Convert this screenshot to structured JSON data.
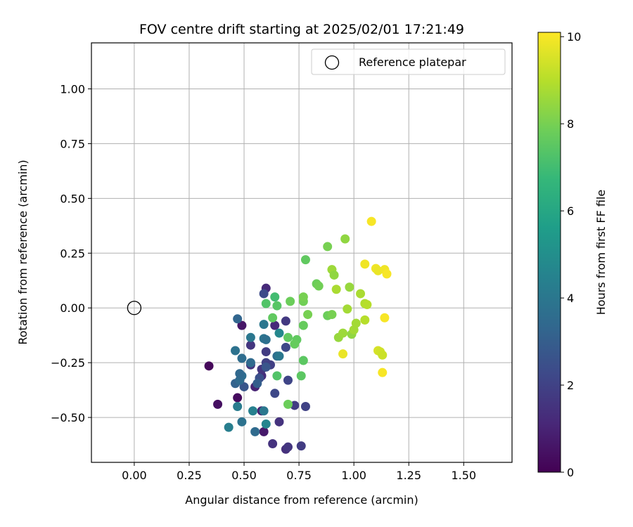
{
  "chart_data": {
    "type": "scatter",
    "title": "FOV centre drift starting at 2025/02/01 17:21:49",
    "xlabel": "Angular distance from reference (arcmin)",
    "ylabel": "Rotation from reference (arcmin)",
    "xlim": [
      -0.195,
      1.72
    ],
    "ylim": [
      -0.705,
      1.21
    ],
    "xticks": [
      0.0,
      0.25,
      0.5,
      0.75,
      1.0,
      1.25,
      1.5
    ],
    "xtick_labels": [
      "0.00",
      "0.25",
      "0.50",
      "0.75",
      "1.00",
      "1.25",
      "1.50"
    ],
    "yticks": [
      -0.5,
      -0.25,
      0.0,
      0.25,
      0.5,
      0.75,
      1.0
    ],
    "ytick_labels": [
      "−0.50",
      "−0.25",
      "0.00",
      "0.25",
      "0.50",
      "0.75",
      "1.00"
    ],
    "grid": true,
    "legend": {
      "position": "top-right",
      "entries": [
        {
          "label": "Reference platepar",
          "marker": "open-circle"
        }
      ]
    },
    "reference_point": {
      "x": 0.0,
      "y": 0.0
    },
    "colorbar": {
      "label": "Hours from first FF file",
      "colormap": "viridis",
      "range": [
        0,
        10.1
      ],
      "ticks": [
        0,
        2,
        4,
        6,
        8,
        10
      ],
      "tick_labels": [
        "0",
        "2",
        "4",
        "6",
        "8",
        "10"
      ],
      "colors": [
        "#440154",
        "#482878",
        "#3e4989",
        "#31688e",
        "#26828e",
        "#1f9e89",
        "#35b779",
        "#6ece58",
        "#b5de2b",
        "#fde725"
      ]
    },
    "points": [
      {
        "x": 0.34,
        "y": -0.265,
        "c": 0.2
      },
      {
        "x": 0.38,
        "y": -0.44,
        "c": 0.4
      },
      {
        "x": 0.47,
        "y": -0.41,
        "c": 0.3
      },
      {
        "x": 0.48,
        "y": -0.33,
        "c": 0.5
      },
      {
        "x": 0.49,
        "y": -0.08,
        "c": 0.6
      },
      {
        "x": 0.59,
        "y": -0.565,
        "c": 0.7
      },
      {
        "x": 0.58,
        "y": -0.47,
        "c": 1.0
      },
      {
        "x": 0.55,
        "y": -0.36,
        "c": 1.0
      },
      {
        "x": 0.6,
        "y": 0.09,
        "c": 1.2
      },
      {
        "x": 0.63,
        "y": -0.62,
        "c": 1.5
      },
      {
        "x": 0.69,
        "y": -0.645,
        "c": 1.4
      },
      {
        "x": 0.7,
        "y": -0.635,
        "c": 1.6
      },
      {
        "x": 0.76,
        "y": -0.63,
        "c": 1.8
      },
      {
        "x": 0.66,
        "y": -0.52,
        "c": 1.5
      },
      {
        "x": 0.73,
        "y": -0.445,
        "c": 1.8
      },
      {
        "x": 0.78,
        "y": -0.45,
        "c": 2.0
      },
      {
        "x": 0.64,
        "y": -0.39,
        "c": 2.2
      },
      {
        "x": 0.7,
        "y": -0.33,
        "c": 2.1
      },
      {
        "x": 0.58,
        "y": -0.31,
        "c": 1.3
      },
      {
        "x": 0.58,
        "y": -0.28,
        "c": 1.6
      },
      {
        "x": 0.53,
        "y": -0.26,
        "c": 1.6
      },
      {
        "x": 0.6,
        "y": -0.25,
        "c": 2.0
      },
      {
        "x": 0.62,
        "y": -0.26,
        "c": 1.9
      },
      {
        "x": 0.6,
        "y": -0.2,
        "c": 1.8
      },
      {
        "x": 0.53,
        "y": -0.17,
        "c": 1.6
      },
      {
        "x": 0.64,
        "y": -0.08,
        "c": 1.2
      },
      {
        "x": 0.69,
        "y": -0.06,
        "c": 1.7
      },
      {
        "x": 0.69,
        "y": -0.18,
        "c": 2.2
      },
      {
        "x": 0.59,
        "y": 0.065,
        "c": 2.3
      },
      {
        "x": 0.6,
        "y": -0.27,
        "c": 2.7
      },
      {
        "x": 0.57,
        "y": -0.32,
        "c": 2.5
      },
      {
        "x": 0.5,
        "y": -0.36,
        "c": 2.7
      },
      {
        "x": 0.56,
        "y": -0.345,
        "c": 3.0
      },
      {
        "x": 0.46,
        "y": -0.345,
        "c": 3.2
      },
      {
        "x": 0.49,
        "y": -0.31,
        "c": 3.6
      },
      {
        "x": 0.48,
        "y": -0.33,
        "c": 3.5
      },
      {
        "x": 0.48,
        "y": -0.3,
        "c": 3.4
      },
      {
        "x": 0.49,
        "y": -0.23,
        "c": 3.6
      },
      {
        "x": 0.46,
        "y": -0.195,
        "c": 3.8
      },
      {
        "x": 0.47,
        "y": -0.05,
        "c": 3.3
      },
      {
        "x": 0.53,
        "y": -0.135,
        "c": 4.0
      },
      {
        "x": 0.59,
        "y": -0.14,
        "c": 3.9
      },
      {
        "x": 0.59,
        "y": -0.075,
        "c": 4.0
      },
      {
        "x": 0.6,
        "y": -0.145,
        "c": 3.7
      },
      {
        "x": 0.65,
        "y": -0.22,
        "c": 3.6
      },
      {
        "x": 0.66,
        "y": -0.22,
        "c": 4.0
      },
      {
        "x": 0.53,
        "y": -0.25,
        "c": 3.5
      },
      {
        "x": 0.55,
        "y": -0.565,
        "c": 3.5
      },
      {
        "x": 0.49,
        "y": -0.52,
        "c": 3.8
      },
      {
        "x": 0.43,
        "y": -0.545,
        "c": 4.3
      },
      {
        "x": 0.47,
        "y": -0.45,
        "c": 4.2
      },
      {
        "x": 0.54,
        "y": -0.47,
        "c": 4.4
      },
      {
        "x": 0.59,
        "y": -0.47,
        "c": 4.0
      },
      {
        "x": 0.6,
        "y": -0.53,
        "c": 4.6
      },
      {
        "x": 0.66,
        "y": -0.115,
        "c": 4.7
      },
      {
        "x": 0.64,
        "y": 0.05,
        "c": 7.0
      },
      {
        "x": 0.6,
        "y": 0.02,
        "c": 7.3
      },
      {
        "x": 0.65,
        "y": 0.01,
        "c": 7.4
      },
      {
        "x": 0.63,
        "y": -0.045,
        "c": 7.6
      },
      {
        "x": 0.65,
        "y": -0.31,
        "c": 7.3
      },
      {
        "x": 0.71,
        "y": 0.03,
        "c": 7.8
      },
      {
        "x": 0.7,
        "y": -0.135,
        "c": 7.6
      },
      {
        "x": 0.74,
        "y": -0.145,
        "c": 7.6
      },
      {
        "x": 0.73,
        "y": -0.165,
        "c": 7.7
      },
      {
        "x": 0.77,
        "y": -0.24,
        "c": 7.5
      },
      {
        "x": 0.76,
        "y": -0.31,
        "c": 7.5
      },
      {
        "x": 0.77,
        "y": -0.08,
        "c": 7.7
      },
      {
        "x": 0.7,
        "y": -0.44,
        "c": 7.8
      },
      {
        "x": 0.77,
        "y": 0.03,
        "c": 7.9
      },
      {
        "x": 0.77,
        "y": 0.05,
        "c": 8.0
      },
      {
        "x": 0.79,
        "y": -0.03,
        "c": 8.0
      },
      {
        "x": 0.78,
        "y": 0.22,
        "c": 7.6
      },
      {
        "x": 0.83,
        "y": 0.11,
        "c": 7.8
      },
      {
        "x": 0.84,
        "y": 0.1,
        "c": 7.9
      },
      {
        "x": 0.88,
        "y": -0.035,
        "c": 7.8
      },
      {
        "x": 0.9,
        "y": -0.03,
        "c": 8.0
      },
      {
        "x": 0.88,
        "y": 0.28,
        "c": 8.0
      },
      {
        "x": 0.9,
        "y": 0.175,
        "c": 8.6
      },
      {
        "x": 0.91,
        "y": 0.15,
        "c": 8.4
      },
      {
        "x": 0.92,
        "y": 0.085,
        "c": 8.8
      },
      {
        "x": 0.93,
        "y": -0.135,
        "c": 8.5
      },
      {
        "x": 0.95,
        "y": -0.115,
        "c": 8.6
      },
      {
        "x": 0.96,
        "y": 0.315,
        "c": 8.4
      },
      {
        "x": 0.97,
        "y": -0.005,
        "c": 8.7
      },
      {
        "x": 0.98,
        "y": 0.095,
        "c": 8.5
      },
      {
        "x": 0.99,
        "y": -0.12,
        "c": 8.4
      },
      {
        "x": 1.0,
        "y": -0.1,
        "c": 8.7
      },
      {
        "x": 1.01,
        "y": -0.07,
        "c": 8.7
      },
      {
        "x": 1.03,
        "y": 0.065,
        "c": 8.8
      },
      {
        "x": 1.05,
        "y": 0.02,
        "c": 8.9
      },
      {
        "x": 1.06,
        "y": 0.015,
        "c": 9.0
      },
      {
        "x": 1.05,
        "y": -0.055,
        "c": 9.0
      },
      {
        "x": 0.95,
        "y": -0.21,
        "c": 9.8
      },
      {
        "x": 1.05,
        "y": 0.2,
        "c": 9.9
      },
      {
        "x": 1.08,
        "y": 0.395,
        "c": 10.0
      },
      {
        "x": 1.1,
        "y": 0.18,
        "c": 9.9
      },
      {
        "x": 1.11,
        "y": 0.17,
        "c": 9.8
      },
      {
        "x": 1.14,
        "y": 0.175,
        "c": 9.9
      },
      {
        "x": 1.15,
        "y": 0.155,
        "c": 10.0
      },
      {
        "x": 1.14,
        "y": -0.045,
        "c": 10.0
      },
      {
        "x": 1.11,
        "y": -0.195,
        "c": 9.5
      },
      {
        "x": 1.12,
        "y": -0.2,
        "c": 9.4
      },
      {
        "x": 1.13,
        "y": -0.215,
        "c": 9.3
      },
      {
        "x": 1.13,
        "y": -0.295,
        "c": 10.0
      }
    ]
  }
}
